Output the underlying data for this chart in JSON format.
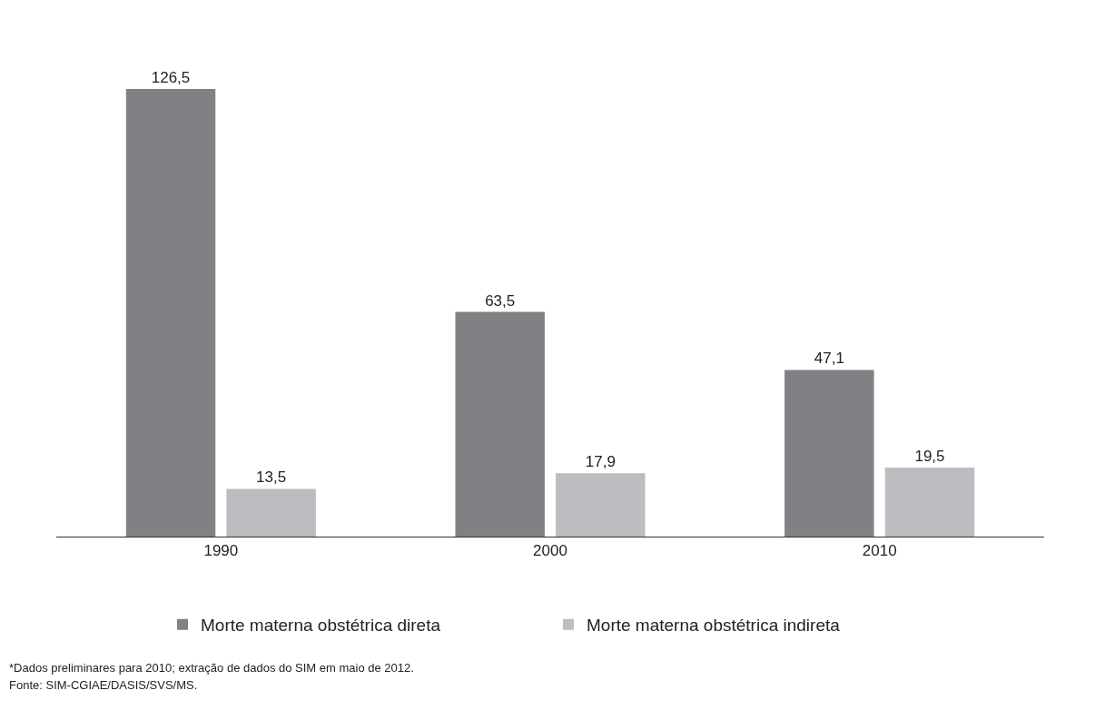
{
  "chart_data": {
    "type": "bar",
    "categories": [
      "1990",
      "2000",
      "2010"
    ],
    "series": [
      {
        "name": "Morte materna obstétrica direta",
        "color": "#808185",
        "values": [
          126.5,
          63.5,
          47.1
        ],
        "value_labels": [
          "126,5",
          "63,5",
          "47,1"
        ]
      },
      {
        "name": "Morte materna obstétrica indireta",
        "color": "#bcbdc0",
        "values": [
          13.5,
          17.9,
          19.5
        ],
        "value_labels": [
          "13,5",
          "17,9",
          "19,5"
        ]
      }
    ],
    "legend": "bottom",
    "annotations": [
      "*Dados preliminares para 2010; extração de dados do SIM em maio de 2012.",
      "Fonte: SIM-CGIAE/DASIS/SVS/MS."
    ]
  }
}
